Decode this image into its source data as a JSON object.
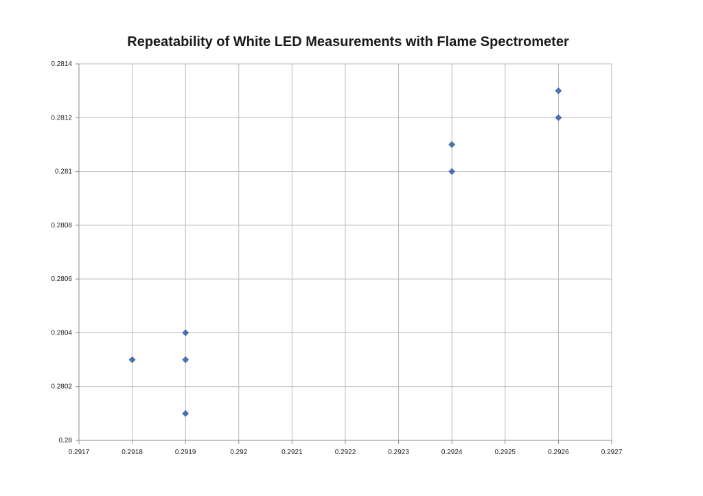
{
  "chart_data": {
    "type": "scatter",
    "title": "Repeatability of White LED Measurements with Flame Spectrometer",
    "xlabel": "",
    "ylabel": "",
    "xlim": [
      0.2917,
      0.2927
    ],
    "ylim": [
      0.28,
      0.2814
    ],
    "x_ticks": [
      "0.2917",
      "0.2918",
      "0.2919",
      "0.292",
      "0.2921",
      "0.2922",
      "0.2923",
      "0.2924",
      "0.2925",
      "0.2926",
      "0.2927"
    ],
    "y_ticks": [
      "0.28",
      "0.2802",
      "0.2804",
      "0.2806",
      "0.2808",
      "0.281",
      "0.2812",
      "0.2814"
    ],
    "grid": true,
    "marker": "diamond",
    "series": [
      {
        "color": "#4a72b0",
        "points": [
          {
            "x": 0.2918,
            "y": 0.2803
          },
          {
            "x": 0.2919,
            "y": 0.2804
          },
          {
            "x": 0.2919,
            "y": 0.2803
          },
          {
            "x": 0.2919,
            "y": 0.2801
          },
          {
            "x": 0.2924,
            "y": 0.2811
          },
          {
            "x": 0.2924,
            "y": 0.281
          },
          {
            "x": 0.2926,
            "y": 0.2813
          },
          {
            "x": 0.2926,
            "y": 0.2812
          }
        ]
      }
    ]
  }
}
